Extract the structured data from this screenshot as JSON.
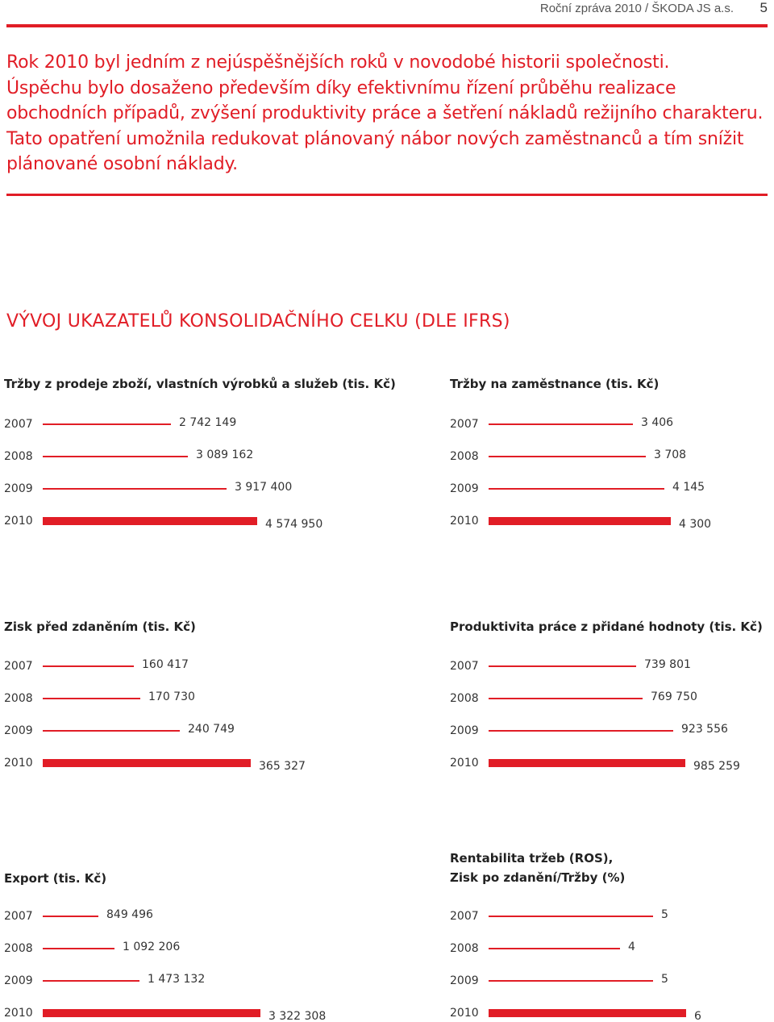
{
  "header": {
    "text": "Roční zpráva 2010 / ŠKODA JS a.s.",
    "page_number": "5"
  },
  "intro": {
    "p1": "Rok 2010 byl jedním z nejúspěšnějších roků v novodobé historii společnosti.",
    "p2": "Úspěchu bylo dosaženo především díky efektivnímu řízení průběhu realizace obchodních případů, zvýšení produktivity práce a šetření nákladů režijního charakteru. Tato opatření umožnila redukovat plánovaný nábor nových zaměstnanců a tím snížit plánované osobní náklady."
  },
  "section_title": "VÝVOJ UKAZATELŮ KONSOLIDAČNÍHO CELKU (DLE IFRS)",
  "colors": {
    "accent": "#e11d26"
  },
  "chart_data": [
    {
      "type": "bar",
      "title": "Tržby z prodeje zboží, vlastních výrobků a služeb (tis. Kč)",
      "categories": [
        "2007",
        "2008",
        "2009",
        "2010"
      ],
      "values": [
        2742149,
        3089162,
        3917400,
        4574950
      ],
      "labels": [
        "2 742 149",
        "3 089 162",
        "3 917 400",
        "4 574 950"
      ],
      "highlight_index": 3
    },
    {
      "type": "bar",
      "title": "Tržby na zaměstnance (tis. Kč)",
      "categories": [
        "2007",
        "2008",
        "2009",
        "2010"
      ],
      "values": [
        3406,
        3708,
        4145,
        4300
      ],
      "labels": [
        "3 406",
        "3 708",
        "4 145",
        "4 300"
      ],
      "highlight_index": 3
    },
    {
      "type": "bar",
      "title": "Zisk před zdaněním (tis. Kč)",
      "categories": [
        "2007",
        "2008",
        "2009",
        "2010"
      ],
      "values": [
        160417,
        170730,
        240749,
        365327
      ],
      "labels": [
        "160 417",
        "170 730",
        "240 749",
        "365 327"
      ],
      "highlight_index": 3
    },
    {
      "type": "bar",
      "title": "Produktivita práce z přidané hodnoty (tis. Kč)",
      "categories": [
        "2007",
        "2008",
        "2009",
        "2010"
      ],
      "values": [
        739801,
        769750,
        923556,
        985259
      ],
      "labels": [
        "739 801",
        "769 750",
        "923 556",
        "985 259"
      ],
      "highlight_index": 3
    },
    {
      "type": "bar",
      "title": "Export (tis. Kč)",
      "categories": [
        "2007",
        "2008",
        "2009",
        "2010"
      ],
      "values": [
        849496,
        1092206,
        1473132,
        3322308
      ],
      "labels": [
        "849 496",
        "1 092 206",
        "1 473 132",
        "3 322 308"
      ],
      "highlight_index": 3
    },
    {
      "type": "bar",
      "title": "Rentabilita tržeb (ROS), Zisk po zdanění/Tržby (%)",
      "title_lines": [
        "Rentabilita tržeb (ROS),",
        "Zisk po zdanění/Tržby (%)"
      ],
      "categories": [
        "2007",
        "2008",
        "2009",
        "2010"
      ],
      "values": [
        5,
        4,
        5,
        6
      ],
      "labels": [
        "5",
        "4",
        "5",
        "6"
      ],
      "highlight_index": 3
    }
  ]
}
